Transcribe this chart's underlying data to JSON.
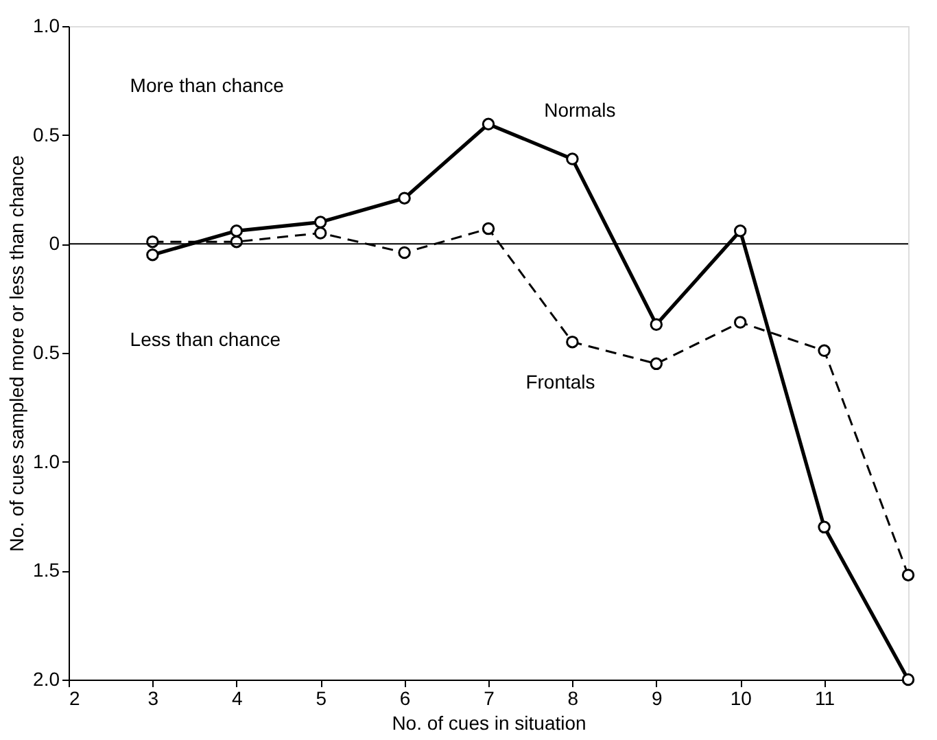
{
  "chart_data": {
    "type": "line",
    "xlabel": "No. of cues in situation",
    "ylabel": "No. of cues sampled more or less than chance",
    "x": [
      3,
      4,
      5,
      6,
      7,
      8,
      9,
      10,
      11,
      12
    ],
    "series": [
      {
        "name": "Normals",
        "color": "#000000",
        "line_style": "solid",
        "values": [
          -0.05,
          0.06,
          0.1,
          0.21,
          0.55,
          0.39,
          -0.37,
          0.06,
          -1.3,
          -2.0
        ]
      },
      {
        "name": "Frontals",
        "color": "#000000",
        "line_style": "dashed",
        "values": [
          0.01,
          0.01,
          0.05,
          -0.04,
          0.07,
          -0.45,
          -0.55,
          -0.36,
          -0.49,
          -1.52
        ]
      }
    ],
    "xlim": [
      2,
      12
    ],
    "xticks": [
      2,
      3,
      4,
      5,
      6,
      7,
      8,
      9,
      10,
      11
    ],
    "ylim": [
      -2.0,
      1.0
    ],
    "yticks": [
      {
        "value": 1.0,
        "label": "1.0"
      },
      0.5,
      0,
      {
        "value": -0.5,
        "label": "0.5"
      },
      {
        "value": -1.0,
        "label": "1.0"
      },
      {
        "value": -1.5,
        "label": "1.5"
      },
      {
        "value": -2.0,
        "label": "2.0"
      }
    ],
    "ref_lines": [
      {
        "axis": "y",
        "value": 0,
        "color": "#000000"
      }
    ],
    "annotations": [
      "More than chance",
      "Less than chance"
    ],
    "marker": "circle",
    "grid": false,
    "legend": false
  }
}
